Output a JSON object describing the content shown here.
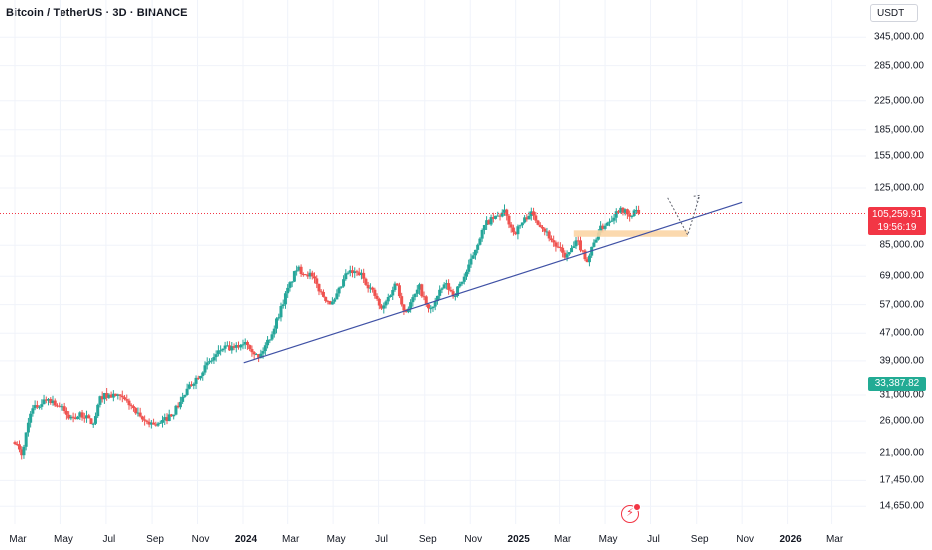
{
  "header": {
    "title": "Bitcoin / TetherUS · 3D · BINANCE"
  },
  "price_axis": {
    "currency": "USDT",
    "ticks": [
      "345,000.00",
      "285,000.00",
      "225,000.00",
      "185,000.00",
      "155,000.00",
      "125,000.00",
      "85,000.00",
      "69,000.00",
      "57,000.00",
      "47,000.00",
      "39,000.00",
      "31,000.00",
      "26,000.00",
      "21,000.00",
      "17,450.00",
      "14,650.00"
    ],
    "current_price": "105,259.91",
    "countdown": "19:56:19",
    "low_marker": "33,387.82"
  },
  "time_axis": {
    "labels": [
      "Mar",
      "May",
      "Jul",
      "Sep",
      "Nov",
      "2024",
      "Mar",
      "May",
      "Jul",
      "Sep",
      "Nov",
      "2025",
      "Mar",
      "May",
      "Jul",
      "Sep",
      "Nov",
      "2026",
      "Mar"
    ]
  },
  "colors": {
    "up": "#26a69a",
    "down": "#ef5350",
    "trendline": "#3f51a5",
    "zone": "#fbd5a5",
    "price_line": "#f23645",
    "grid": "#f0f3fa"
  },
  "events": {
    "icon": "event-icon"
  },
  "chart_data": {
    "type": "candlestick",
    "symbol": "Bitcoin / TetherUS",
    "interval": "3D",
    "exchange": "BINANCE",
    "y_scale": "log",
    "ylim": [
      14000,
      380000
    ],
    "x_range": [
      "2023-03-01",
      "2026-03-15"
    ],
    "last_price": 105259.91,
    "path": [
      [
        "2023-03-01",
        22800
      ],
      [
        "2023-03-10",
        20500
      ],
      [
        "2023-03-22",
        27800
      ],
      [
        "2023-04-05",
        29300
      ],
      [
        "2023-04-14",
        30400
      ],
      [
        "2023-05-01",
        28600
      ],
      [
        "2023-05-12",
        26600
      ],
      [
        "2023-06-01",
        27100
      ],
      [
        "2023-06-14",
        25400
      ],
      [
        "2023-06-24",
        30800
      ],
      [
        "2023-07-13",
        30900
      ],
      [
        "2023-08-01",
        29300
      ],
      [
        "2023-08-17",
        26200
      ],
      [
        "2023-09-10",
        25300
      ],
      [
        "2023-10-01",
        27800
      ],
      [
        "2023-10-23",
        33200
      ],
      [
        "2023-11-10",
        37200
      ],
      [
        "2023-12-05",
        42600
      ],
      [
        "2023-12-20",
        42200
      ],
      [
        "2024-01-05",
        44800
      ],
      [
        "2024-01-22",
        39600
      ],
      [
        "2024-02-10",
        47700
      ],
      [
        "2024-02-28",
        61500
      ],
      [
        "2024-03-13",
        72500
      ],
      [
        "2024-04-01",
        69500
      ],
      [
        "2024-04-17",
        60600
      ],
      [
        "2024-05-01",
        57000
      ],
      [
        "2024-05-20",
        70800
      ],
      [
        "2024-06-07",
        70000
      ],
      [
        "2024-06-25",
        61200
      ],
      [
        "2024-07-05",
        54800
      ],
      [
        "2024-07-25",
        66500
      ],
      [
        "2024-08-05",
        53800
      ],
      [
        "2024-08-25",
        64000
      ],
      [
        "2024-09-07",
        54200
      ],
      [
        "2024-09-28",
        65700
      ],
      [
        "2024-10-10",
        60500
      ],
      [
        "2024-10-29",
        72300
      ],
      [
        "2024-11-12",
        88000
      ],
      [
        "2024-11-22",
        98500
      ],
      [
        "2024-12-17",
        106000
      ],
      [
        "2024-12-30",
        92000
      ],
      [
        "2025-01-20",
        106000
      ],
      [
        "2025-02-05",
        97000
      ],
      [
        "2025-02-25",
        84000
      ],
      [
        "2025-03-10",
        78500
      ],
      [
        "2025-03-25",
        87300
      ],
      [
        "2025-04-07",
        76500
      ],
      [
        "2025-04-22",
        93500
      ],
      [
        "2025-05-12",
        103500
      ],
      [
        "2025-05-22",
        110000
      ],
      [
        "2025-06-05",
        101000
      ],
      [
        "2025-06-10",
        109500
      ],
      [
        "2025-06-17",
        105260
      ]
    ],
    "ohlc": [
      {
        "t": "2024-10-29",
        "o": 69500,
        "h": 73600,
        "l": 68800,
        "c": 72300
      },
      {
        "t": "2024-11-12",
        "o": 80000,
        "h": 89900,
        "l": 79800,
        "c": 88000
      },
      {
        "t": "2024-11-22",
        "o": 93000,
        "h": 99800,
        "l": 92100,
        "c": 98500
      },
      {
        "t": "2024-12-17",
        "o": 104000,
        "h": 108300,
        "l": 99900,
        "c": 106000
      },
      {
        "t": "2025-01-20",
        "o": 102000,
        "h": 109600,
        "l": 99500,
        "c": 106000
      },
      {
        "t": "2025-02-25",
        "o": 91000,
        "h": 92500,
        "l": 82200,
        "c": 84000
      },
      {
        "t": "2025-04-07",
        "o": 82000,
        "h": 83500,
        "l": 74500,
        "c": 76500
      },
      {
        "t": "2025-05-22",
        "o": 107000,
        "h": 111900,
        "l": 106200,
        "c": 110000
      },
      {
        "t": "2025-06-17",
        "o": 106800,
        "h": 108900,
        "l": 104000,
        "c": 105260
      }
    ],
    "trendline": {
      "from": [
        "2024-01-02",
        38500
      ],
      "to": [
        "2025-11-01",
        113500
      ]
    },
    "zone": {
      "from": "2025-03-20",
      "to": "2025-08-20",
      "top": 94000,
      "bottom": 90000
    },
    "projection": [
      [
        "2025-07-24",
        117000
      ],
      [
        "2025-08-20",
        91000
      ],
      [
        "2025-09-05",
        119000
      ]
    ]
  }
}
